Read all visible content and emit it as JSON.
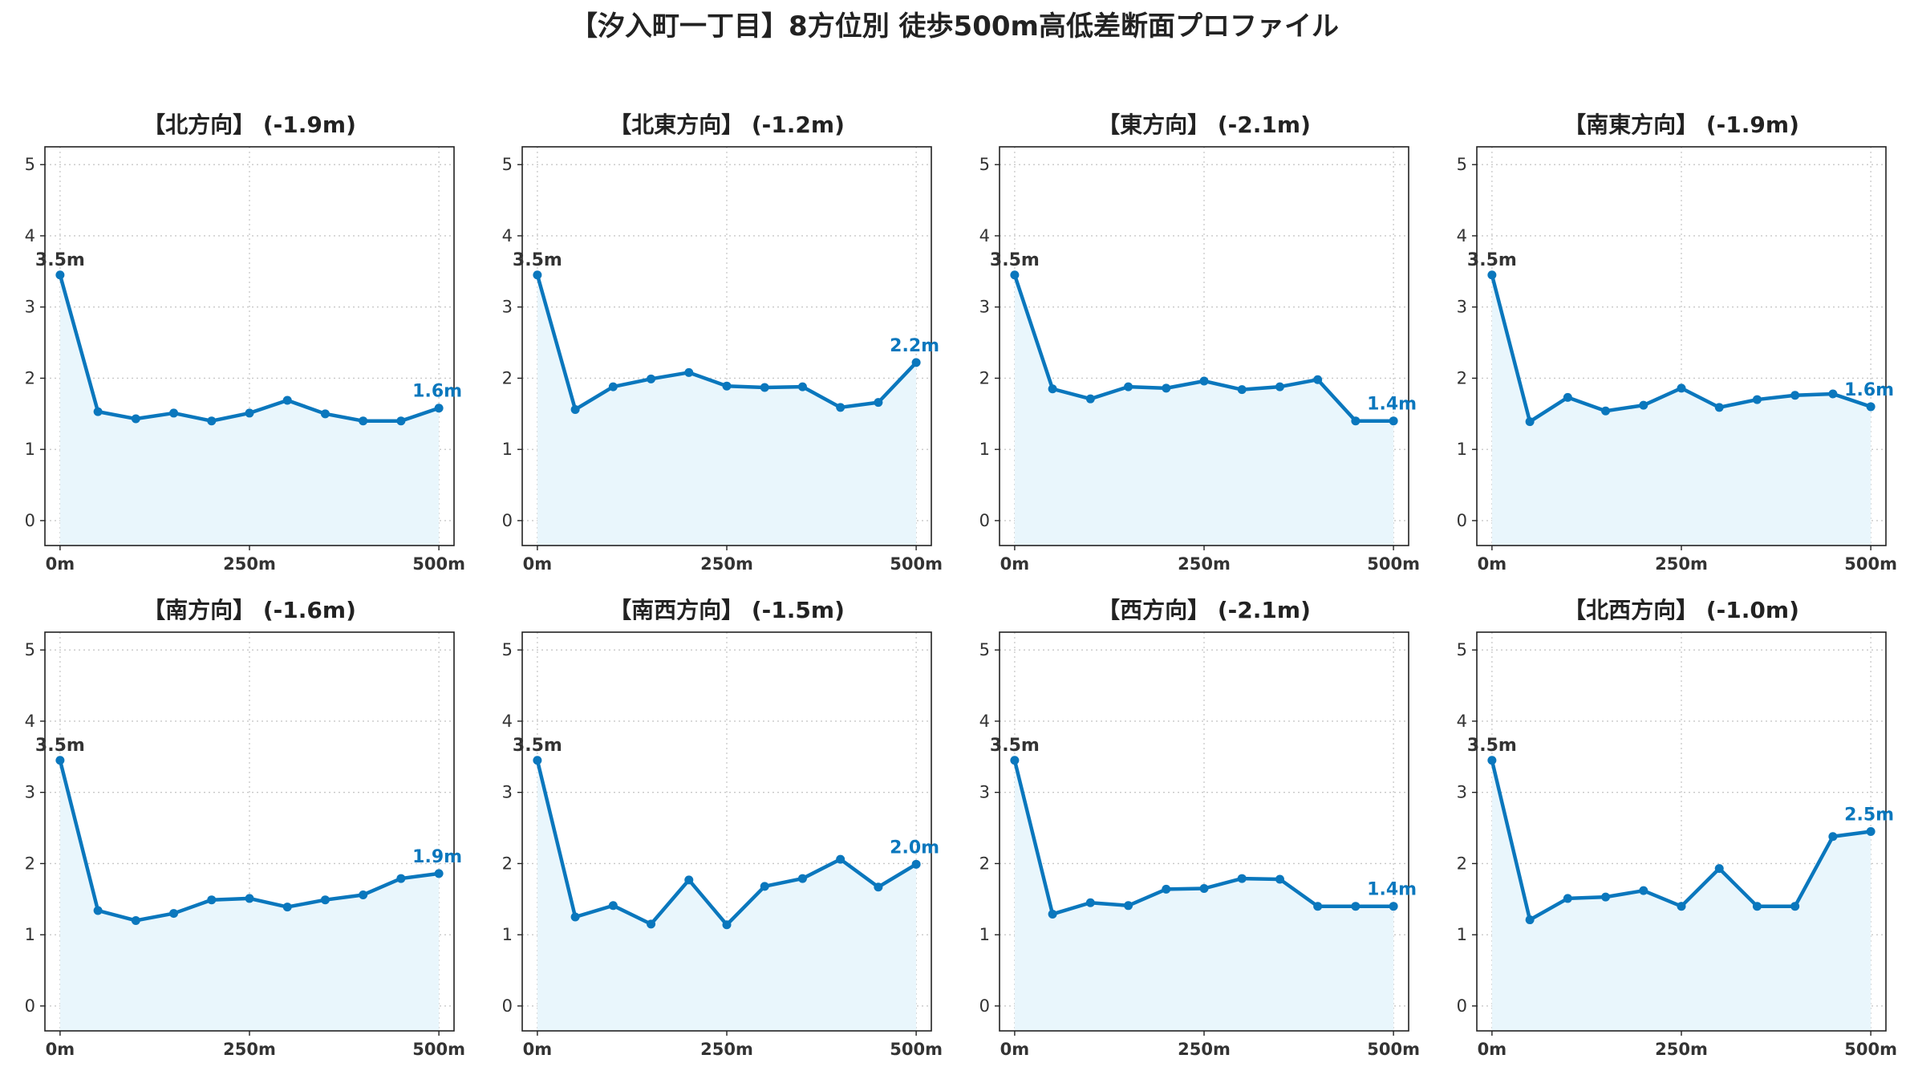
{
  "title": "【汐入町一丁目】8方位別 徒歩500m高低差断面プロファイル",
  "colors": {
    "line": "#0a77bd",
    "fill": "#e9f6fc",
    "start_label": "#333333",
    "end_label": "#0a77bd"
  },
  "chart_data": [
    {
      "type": "line",
      "title": "【北方向】 (-1.9m)",
      "x": [
        0,
        50,
        100,
        150,
        200,
        250,
        300,
        350,
        400,
        450,
        500
      ],
      "values": [
        3.45,
        1.53,
        1.43,
        1.51,
        1.4,
        1.51,
        1.69,
        1.5,
        1.4,
        1.4,
        1.58
      ],
      "start_label": "3.5m",
      "end_label": "1.6m",
      "xticks": [
        "0m",
        "250m",
        "500m"
      ],
      "yticks": [
        "0",
        "1",
        "2",
        "3",
        "4",
        "5"
      ],
      "xlim": [
        -20,
        520
      ],
      "ylim": [
        -0.35,
        5.25
      ],
      "grid": true
    },
    {
      "type": "line",
      "title": "【北東方向】 (-1.2m)",
      "x": [
        0,
        50,
        100,
        150,
        200,
        250,
        300,
        350,
        400,
        450,
        500
      ],
      "values": [
        3.45,
        1.56,
        1.88,
        1.99,
        2.08,
        1.89,
        1.87,
        1.88,
        1.59,
        1.66,
        2.22
      ],
      "start_label": "3.5m",
      "end_label": "2.2m",
      "xticks": [
        "0m",
        "250m",
        "500m"
      ],
      "yticks": [
        "0",
        "1",
        "2",
        "3",
        "4",
        "5"
      ],
      "xlim": [
        -20,
        520
      ],
      "ylim": [
        -0.35,
        5.25
      ],
      "grid": true
    },
    {
      "type": "line",
      "title": "【東方向】 (-2.1m)",
      "x": [
        0,
        50,
        100,
        150,
        200,
        250,
        300,
        350,
        400,
        450,
        500
      ],
      "values": [
        3.45,
        1.85,
        1.71,
        1.88,
        1.86,
        1.96,
        1.84,
        1.88,
        1.98,
        1.4,
        1.4
      ],
      "start_label": "3.5m",
      "end_label": "1.4m",
      "xticks": [
        "0m",
        "250m",
        "500m"
      ],
      "yticks": [
        "0",
        "1",
        "2",
        "3",
        "4",
        "5"
      ],
      "xlim": [
        -20,
        520
      ],
      "ylim": [
        -0.35,
        5.25
      ],
      "grid": true
    },
    {
      "type": "line",
      "title": "【南東方向】 (-1.9m)",
      "x": [
        0,
        50,
        100,
        150,
        200,
        250,
        300,
        350,
        400,
        450,
        500
      ],
      "values": [
        3.45,
        1.39,
        1.73,
        1.54,
        1.62,
        1.86,
        1.59,
        1.7,
        1.76,
        1.78,
        1.6
      ],
      "start_label": "3.5m",
      "end_label": "1.6m",
      "xticks": [
        "0m",
        "250m",
        "500m"
      ],
      "yticks": [
        "0",
        "1",
        "2",
        "3",
        "4",
        "5"
      ],
      "xlim": [
        -20,
        520
      ],
      "ylim": [
        -0.35,
        5.25
      ],
      "grid": true
    },
    {
      "type": "line",
      "title": "【南方向】 (-1.6m)",
      "x": [
        0,
        50,
        100,
        150,
        200,
        250,
        300,
        350,
        400,
        450,
        500
      ],
      "values": [
        3.45,
        1.34,
        1.2,
        1.3,
        1.49,
        1.51,
        1.39,
        1.49,
        1.56,
        1.79,
        1.86
      ],
      "start_label": "3.5m",
      "end_label": "1.9m",
      "xticks": [
        "0m",
        "250m",
        "500m"
      ],
      "yticks": [
        "0",
        "1",
        "2",
        "3",
        "4",
        "5"
      ],
      "xlim": [
        -20,
        520
      ],
      "ylim": [
        -0.35,
        5.25
      ],
      "grid": true
    },
    {
      "type": "line",
      "title": "【南西方向】 (-1.5m)",
      "x": [
        0,
        50,
        100,
        150,
        200,
        250,
        300,
        350,
        400,
        450,
        500
      ],
      "values": [
        3.45,
        1.25,
        1.41,
        1.15,
        1.77,
        1.14,
        1.68,
        1.79,
        2.06,
        1.67,
        1.99
      ],
      "start_label": "3.5m",
      "end_label": "2.0m",
      "xticks": [
        "0m",
        "250m",
        "500m"
      ],
      "yticks": [
        "0",
        "1",
        "2",
        "3",
        "4",
        "5"
      ],
      "xlim": [
        -20,
        520
      ],
      "ylim": [
        -0.35,
        5.25
      ],
      "grid": true
    },
    {
      "type": "line",
      "title": "【西方向】 (-2.1m)",
      "x": [
        0,
        50,
        100,
        150,
        200,
        250,
        300,
        350,
        400,
        450,
        500
      ],
      "values": [
        3.45,
        1.29,
        1.45,
        1.41,
        1.64,
        1.65,
        1.79,
        1.78,
        1.4,
        1.4,
        1.4
      ],
      "start_label": "3.5m",
      "end_label": "1.4m",
      "xticks": [
        "0m",
        "250m",
        "500m"
      ],
      "yticks": [
        "0",
        "1",
        "2",
        "3",
        "4",
        "5"
      ],
      "xlim": [
        -20,
        520
      ],
      "ylim": [
        -0.35,
        5.25
      ],
      "grid": true
    },
    {
      "type": "line",
      "title": "【北西方向】 (-1.0m)",
      "x": [
        0,
        50,
        100,
        150,
        200,
        250,
        300,
        350,
        400,
        450,
        500
      ],
      "values": [
        3.45,
        1.21,
        1.51,
        1.53,
        1.62,
        1.4,
        1.93,
        1.4,
        1.4,
        2.38,
        2.45
      ],
      "start_label": "3.5m",
      "end_label": "2.5m",
      "xticks": [
        "0m",
        "250m",
        "500m"
      ],
      "yticks": [
        "0",
        "1",
        "2",
        "3",
        "4",
        "5"
      ],
      "xlim": [
        -20,
        520
      ],
      "ylim": [
        -0.35,
        5.25
      ],
      "grid": true
    }
  ]
}
